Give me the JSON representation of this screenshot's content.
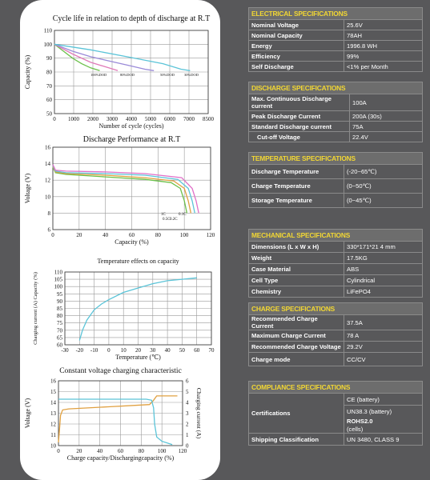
{
  "charts": {
    "cycle_life": {
      "title": "Cycle life in relation to depth of discharge  at R.T",
      "ylabel": "Capacity (%)",
      "xlabel": "Number of cycle (cycles)",
      "xticks": [
        "0",
        "1000",
        "2000",
        "3000",
        "4000",
        "5000",
        "6000",
        "7000",
        "8500"
      ],
      "yticks": [
        "110",
        "100",
        "90",
        "80",
        "70",
        "60",
        "50"
      ],
      "curve_labels": [
        "100%DOD",
        "80%DOD",
        "50%DOD",
        "30%DOD"
      ]
    },
    "discharge": {
      "title": "Discharge Performance  at R.T",
      "ylabel": "Voltage (V)",
      "xlabel": "Capacity  (%)",
      "xticks": [
        "0",
        "20",
        "40",
        "60",
        "80",
        "100",
        "120"
      ],
      "yticks": [
        "16",
        "14",
        "12",
        "10",
        "8",
        "6"
      ],
      "curve_labels": [
        "1C",
        "0.5C",
        "0.2C",
        "0.1C"
      ]
    },
    "temperature": {
      "title": "Temperature effects on capacity",
      "ylabel": "Charging current (A) Capacity (%)",
      "xlabel": "Temperature  (℃)",
      "xticks": [
        "-30",
        "-20",
        "-10",
        "0",
        "10",
        "20",
        "30",
        "40",
        "50",
        "60",
        "70"
      ],
      "yticks": [
        "110",
        "105",
        "100",
        "95",
        "90",
        "85",
        "80",
        "75",
        "70",
        "65",
        "60"
      ]
    },
    "cv_charge": {
      "title": "Constant voltage charging characteristic",
      "ylabel": "Voltage (V)",
      "y2label": "Charging current (A)",
      "xlabel": "Charge capacity/Dischargingcapacity (%)",
      "xticks": [
        "0",
        "20",
        "40",
        "60",
        "80",
        "100",
        "120"
      ],
      "yticks": [
        "16",
        "15",
        "14",
        "13",
        "12",
        "11",
        "10"
      ],
      "y2ticks": [
        "6",
        "5",
        "4",
        "3",
        "2",
        "1",
        "0"
      ]
    }
  },
  "chart_data": [
    {
      "type": "line",
      "title": "Cycle life in relation to depth of discharge  at R.T",
      "xlabel": "Number of cycle (cycles)",
      "ylabel": "Capacity (%)",
      "xlim": [
        0,
        8500
      ],
      "ylim": [
        50,
        110
      ],
      "series": [
        {
          "name": "100%DOD",
          "color": "#6cc04a",
          "x": [
            0,
            500,
            1000,
            1500,
            2000,
            2500
          ],
          "y": [
            100,
            95,
            90,
            86,
            83,
            81
          ]
        },
        {
          "name": "80%DOD",
          "color": "#e07ab8",
          "x": [
            0,
            1000,
            2000,
            3000,
            3500
          ],
          "y": [
            100,
            93,
            87,
            83,
            81
          ]
        },
        {
          "name": "50%DOD",
          "color": "#9a8ad8",
          "x": [
            0,
            1000,
            2000,
            3000,
            4000,
            5000,
            5500
          ],
          "y": [
            100,
            95,
            91,
            88,
            85,
            82,
            81
          ]
        },
        {
          "name": "30%DOD",
          "color": "#5bc4d8",
          "x": [
            0,
            2000,
            4000,
            6000,
            7000,
            7500
          ],
          "y": [
            100,
            96,
            91,
            86,
            82,
            81
          ]
        }
      ]
    },
    {
      "type": "line",
      "title": "Discharge Performance  at R.T",
      "xlabel": "Capacity  (%)",
      "ylabel": "Voltage (V)",
      "xlim": [
        0,
        120
      ],
      "ylim": [
        6,
        16
      ],
      "series": [
        {
          "name": "1C",
          "color": "#6cc04a",
          "x": [
            0,
            2,
            10,
            40,
            70,
            90,
            97,
            100,
            102
          ],
          "y": [
            13.6,
            12.9,
            12.7,
            12.4,
            12.1,
            11.7,
            11.0,
            9.5,
            8.0
          ]
        },
        {
          "name": "0.5C",
          "color": "#e0a040",
          "x": [
            0,
            2,
            10,
            40,
            70,
            92,
            100,
            103,
            105
          ],
          "y": [
            13.7,
            13.0,
            12.8,
            12.6,
            12.3,
            11.9,
            11.0,
            9.5,
            8.0
          ]
        },
        {
          "name": "0.2C",
          "color": "#5bc4d8",
          "x": [
            0,
            2,
            10,
            40,
            70,
            95,
            103,
            106,
            108
          ],
          "y": [
            13.8,
            13.1,
            12.9,
            12.8,
            12.6,
            12.1,
            11.0,
            9.5,
            8.0
          ]
        },
        {
          "name": "0.1C",
          "color": "#e070c8",
          "x": [
            0,
            2,
            10,
            40,
            70,
            98,
            106,
            109,
            111
          ],
          "y": [
            13.9,
            13.2,
            13.1,
            13.0,
            12.8,
            12.3,
            11.0,
            9.5,
            8.0
          ]
        }
      ]
    },
    {
      "type": "line",
      "title": "Temperature effects on capacity",
      "xlabel": "Temperature  (℃)",
      "ylabel": "Charging current (A) Capacity (%)",
      "xlim": [
        -30,
        70
      ],
      "ylim": [
        60,
        110
      ],
      "series": [
        {
          "name": "",
          "color": "#5bc4d8",
          "x": [
            -20,
            -18,
            -15,
            -10,
            -5,
            0,
            10,
            20,
            30,
            40,
            50,
            60
          ],
          "y": [
            63,
            70,
            77,
            84,
            88,
            91,
            96,
            99,
            102,
            104,
            105,
            106
          ]
        }
      ]
    },
    {
      "type": "line",
      "title": "Constant voltage charging characteristic",
      "xlabel": "Charge capacity/Dischargingcapacity (%)",
      "ylabel": "Voltage (V)",
      "y2label": "Charging current (A)",
      "xlim": [
        0,
        120
      ],
      "ylim": [
        10,
        16
      ],
      "y2lim": [
        0,
        6
      ],
      "series": [
        {
          "name": "",
          "axis": "left",
          "color": "#e0a040",
          "x": [
            0,
            1,
            2,
            4,
            10,
            50,
            88,
            92,
            95,
            115
          ],
          "y": [
            10.3,
            11.5,
            12.8,
            13.3,
            13.4,
            13.6,
            13.8,
            14.2,
            14.6,
            14.6
          ]
        },
        {
          "name": "",
          "axis": "right",
          "color": "#5bc4d8",
          "x": [
            0,
            85,
            90,
            92,
            93,
            95,
            100,
            110
          ],
          "y": [
            4.3,
            4.3,
            4.2,
            3.5,
            2.0,
            0.8,
            0.4,
            0.1
          ]
        }
      ]
    }
  ],
  "electrical": {
    "header": "ELECTRICAL SPECIFICATIONS",
    "rows": [
      {
        "label": "Nominal Voltage",
        "value": "25.6V"
      },
      {
        "label": "Nominal Capacity",
        "value": "78AH"
      },
      {
        "label": "Energy",
        "value": "1996.8 WH"
      },
      {
        "label": "Efficiency",
        "value": "99%"
      },
      {
        "label": "Self Discharge",
        "value": "<1% per Month"
      }
    ]
  },
  "discharge": {
    "header": "DISCHARGE SPECIFICATIONS",
    "rows": [
      {
        "label": "Max. Continuous Discharge current",
        "value": "100A"
      },
      {
        "label": "Peak Discharge Current",
        "value": "200A (30s)"
      },
      {
        "label": "Standard Discharge current",
        "value": "75A"
      },
      {
        "label": "Cut-off Voltage",
        "value": "22.4V"
      }
    ]
  },
  "temperature": {
    "header": "TEMPERATURE SPECIFICATIONS",
    "rows": [
      {
        "label": "Discharge Temperature",
        "value": "(-20~65℃)"
      },
      {
        "label": "Charge Temperature",
        "value": "(0~50℃)"
      },
      {
        "label": "Storage Temperature",
        "value": "(0~45℃)"
      }
    ]
  },
  "mechanical": {
    "header": "MECHANICAL SPECIFICATIONS",
    "rows": [
      {
        "label": "Dimensions (L x W x H)",
        "value": "330*171*21 4 mm"
      },
      {
        "label": "Weight",
        "value": "17.5KG"
      },
      {
        "label": "Case Material",
        "value": "ABS"
      },
      {
        "label": "Cell Type",
        "value": "Cylindrical"
      },
      {
        "label": "Chemistry",
        "value": "LiFePO4"
      }
    ]
  },
  "charge": {
    "header": "CHARGE SPECIFICATIONS",
    "rows": [
      {
        "label": "Recommended Charge Current",
        "value": "37.5A"
      },
      {
        "label": "Maximum Charge Current",
        "value": "78 A"
      },
      {
        "label": "Recommended Charge Voltage",
        "value": "29.2V"
      },
      {
        "label": "Charge mode",
        "value": "CC/CV"
      }
    ]
  },
  "compliance": {
    "header": "COMPLIANCE SPECIFICATIONS",
    "cert_label": "Certifications",
    "cert_values": [
      "CE (battery)",
      "UN38.3 (battery)",
      "ROHS2.0",
      "(cells)"
    ],
    "shipping_label": "Shipping Classification",
    "shipping_value": "UN 3480, CLASS 9"
  }
}
